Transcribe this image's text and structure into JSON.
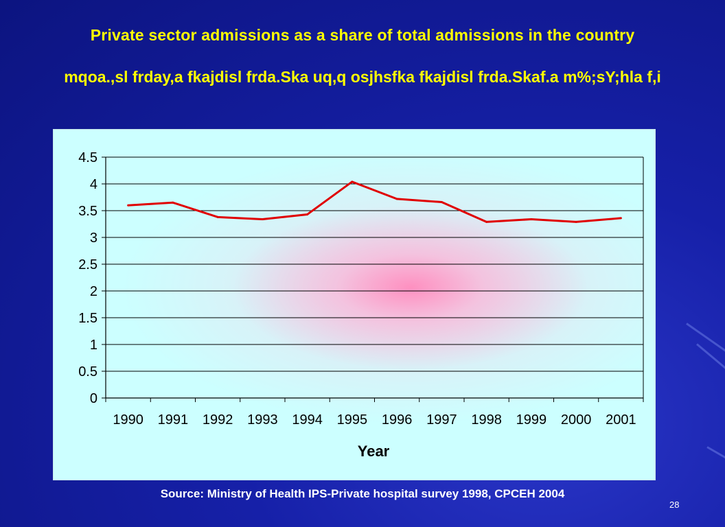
{
  "slide": {
    "title_en": "Private sector admissions as a share of total admissions in the country",
    "title_si": "mqoa.,sl frday,a fkajdisl frda.Ska uq,q osjhsfka fkajdisl frda.Skaf.a m%;sY;hla f,i",
    "source": "Source: Ministry of Health IPS-Private hospital survey 1998, CPCEH 2004",
    "page_number": "28"
  },
  "colors": {
    "background": "#1620a8",
    "title": "#ffff00",
    "line": "#e00000",
    "plot_bg": "#ccffff"
  },
  "chart_data": {
    "type": "line",
    "title": "",
    "xlabel": "Year",
    "ylabel": "",
    "categories": [
      "1990",
      "1991",
      "1992",
      "1993",
      "1994",
      "1995",
      "1996",
      "1997",
      "1998",
      "1999",
      "2000",
      "2001"
    ],
    "series": [
      {
        "values": [
          3.6,
          3.65,
          3.38,
          3.34,
          3.43,
          4.04,
          3.72,
          3.66,
          3.29,
          3.34,
          3.29,
          3.36
        ]
      }
    ],
    "ylim": [
      0,
      4.5
    ],
    "yticks": [
      "0",
      "0.5",
      "1",
      "1.5",
      "2",
      "2.5",
      "3",
      "3.5",
      "4",
      "4.5"
    ],
    "grid": true,
    "legend": "none"
  }
}
